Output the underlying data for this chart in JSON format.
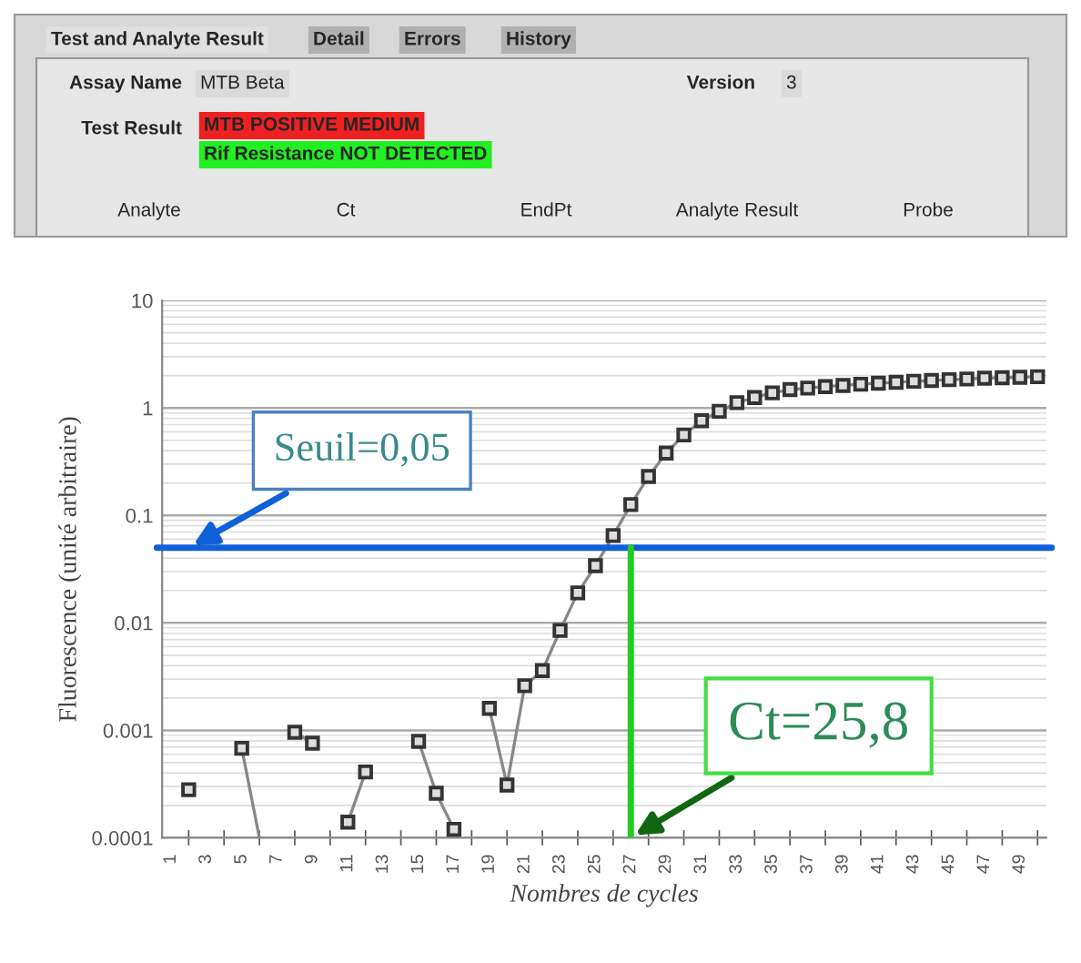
{
  "chart_data": {
    "type": "line",
    "xlabel": "Nombres de cycles",
    "ylabel": "Fluorescence (unité arbitraire)",
    "x": [
      2,
      3,
      4,
      5,
      6,
      7,
      8,
      9,
      10,
      11,
      12,
      13,
      14,
      15,
      16,
      17,
      18,
      19,
      20,
      21,
      22,
      23,
      24,
      25,
      26,
      27,
      28,
      29,
      30,
      31,
      32,
      33,
      34,
      35,
      36,
      37,
      38,
      39,
      40,
      41,
      42,
      43,
      44,
      45,
      46,
      47,
      48,
      49,
      50
    ],
    "series": [
      {
        "color": "#333333",
        "values": [
          0.00028,
          null,
          null,
          0.00068,
          0.0001,
          null,
          0.00096,
          0.00076,
          null,
          0.00014,
          0.00041,
          null,
          null,
          0.00079,
          0.00026,
          0.00012,
          null,
          0.0016,
          0.00031,
          0.0026,
          0.0036,
          0.0085,
          0.019,
          0.034,
          0.065,
          0.126,
          0.23,
          0.38,
          0.56,
          0.76,
          0.93,
          1.12,
          1.25,
          1.38,
          1.48,
          1.53,
          1.58,
          1.62,
          1.66,
          1.7,
          1.73,
          1.77,
          1.8,
          1.83,
          1.86,
          1.89,
          1.91,
          1.93,
          1.95
        ]
      }
    ],
    "log": "y",
    "ylim": [
      0.0001,
      10
    ],
    "yticks": [
      0.0001,
      0.001,
      0.01,
      0.1,
      1,
      10
    ],
    "xlim": [
      0.5,
      50.5
    ],
    "xticks": [
      1,
      3,
      5,
      7,
      9,
      11,
      13,
      15,
      17,
      19,
      21,
      23,
      25,
      27,
      29,
      31,
      33,
      35,
      37,
      39,
      41,
      43,
      45,
      47,
      49
    ],
    "grid": "y",
    "marker": "square",
    "line_style": "solid",
    "legend": false,
    "ref_lines": [
      {
        "axis": "y",
        "value": 0.05,
        "label": "Seuil=0,05",
        "color": "#1060d8",
        "line_style": "solid"
      },
      {
        "axis": "x",
        "value": 27,
        "color": "#22cc22",
        "line_style": "solid"
      }
    ],
    "annotations": [
      "Test and Analyte Result",
      "Detail",
      "Errors",
      "History",
      "Assay Name",
      "MTB Beta",
      "Version",
      "3",
      "Test Result",
      "MTB POSITIVE MEDIUM",
      "Rif Resistance NOT DETECTED",
      "Analyte",
      "Ct",
      "EndPt",
      "Analyte Result",
      "Probe",
      {
        "text": "Ct=25,8",
        "x": 27,
        "y": 0.0001
      }
    ]
  }
}
